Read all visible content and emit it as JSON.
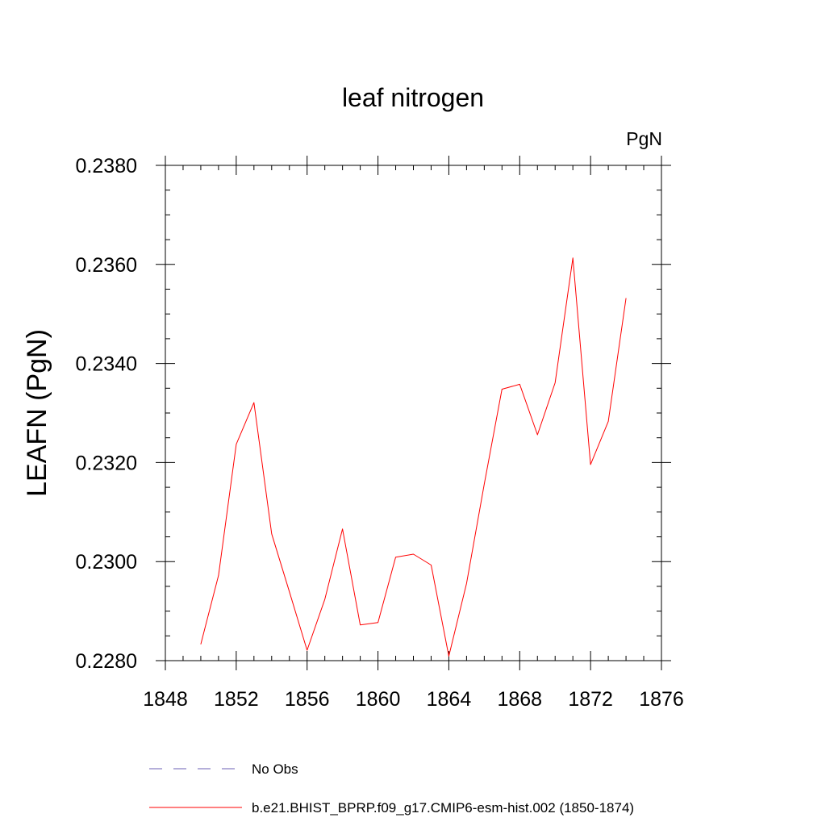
{
  "chart_data": {
    "type": "line",
    "title": "leaf nitrogen",
    "units": "PgN",
    "ylabel": "LEAFN  (PgN)",
    "xlabel": "",
    "xlim": [
      1848,
      1876
    ],
    "ylim": [
      0.228,
      0.238
    ],
    "x_major_ticks": [
      1848,
      1852,
      1856,
      1860,
      1864,
      1868,
      1872,
      1876
    ],
    "x_tick_labels": [
      "1848",
      "1852",
      "1856",
      "1860",
      "1864",
      "1868",
      "1872",
      "1876"
    ],
    "x_minor_step": 1,
    "y_major_ticks": [
      0.228,
      0.23,
      0.232,
      0.234,
      0.236,
      0.238
    ],
    "y_tick_labels": [
      "0.2280",
      "0.2300",
      "0.2320",
      "0.2340",
      "0.2360",
      "0.2380"
    ],
    "y_minor_step": 0.0005,
    "grid": false,
    "series": [
      {
        "name": "b.e21.BHIST_BPRP.f09_g17.CMIP6-esm-hist.002 (1850-1874)",
        "color": "#ff0000",
        "dash": "solid",
        "x": [
          1850,
          1851,
          1852,
          1853,
          1854,
          1855,
          1856,
          1857,
          1858,
          1859,
          1860,
          1861,
          1862,
          1863,
          1864,
          1865,
          1866,
          1867,
          1868,
          1869,
          1870,
          1871,
          1872,
          1873,
          1874
        ],
        "y": [
          0.22833,
          0.22972,
          0.23237,
          0.23321,
          0.23056,
          0.22939,
          0.22821,
          0.22924,
          0.23066,
          0.22872,
          0.22877,
          0.23009,
          0.23015,
          0.22993,
          0.22809,
          0.22956,
          0.23157,
          0.23348,
          0.23358,
          0.23256,
          0.23361,
          0.23613,
          0.23196,
          0.23283,
          0.23532
        ]
      }
    ],
    "legend": {
      "placement": "bottom",
      "entries": [
        {
          "label": "No Obs",
          "color": "#6b5fb5",
          "dash": "dashed"
        },
        {
          "label": "b.e21.BHIST_BPRP.f09_g17.CMIP6-esm-hist.002 (1850-1874)",
          "color": "#ff0000",
          "dash": "solid"
        }
      ]
    }
  }
}
